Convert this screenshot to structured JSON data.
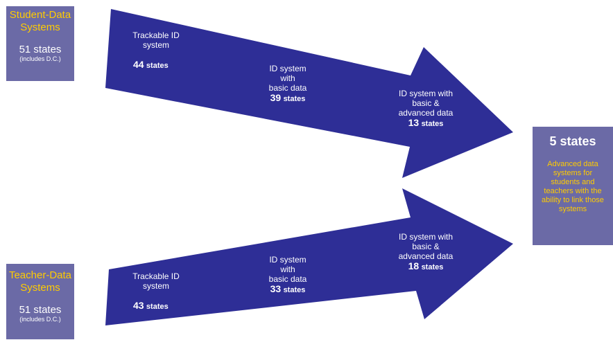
{
  "student": {
    "title": "Student-Data\nSystems",
    "count": "51 states",
    "note": "(includes D.C.)",
    "stages": [
      {
        "label": "Trackable ID\nsystem",
        "count": "44",
        "unit": "states"
      },
      {
        "label": "ID system\nwith\nbasic data",
        "count": "39",
        "unit": "states"
      },
      {
        "label": "ID system with\nbasic &\nadvanced data",
        "count": "13",
        "unit": "states"
      }
    ]
  },
  "teacher": {
    "title": "Teacher-Data\nSystems",
    "count": "51 states",
    "note": "(includes D.C.)",
    "stages": [
      {
        "label": "Trackable ID\nsystem",
        "count": "43",
        "unit": "states"
      },
      {
        "label": "ID system\nwith\nbasic data",
        "count": "33",
        "unit": "states"
      },
      {
        "label": "ID system with\nbasic &\nadvanced data",
        "count": "18",
        "unit": "states"
      }
    ]
  },
  "result": {
    "title": "5 states",
    "description": "Advanced data\nsystems for\nstudents and\nteachers with the\nability to link those\nsystems"
  },
  "colors": {
    "arrow": "#2e2e96",
    "box": "#6b6aa6",
    "accent": "#ffcc00"
  }
}
